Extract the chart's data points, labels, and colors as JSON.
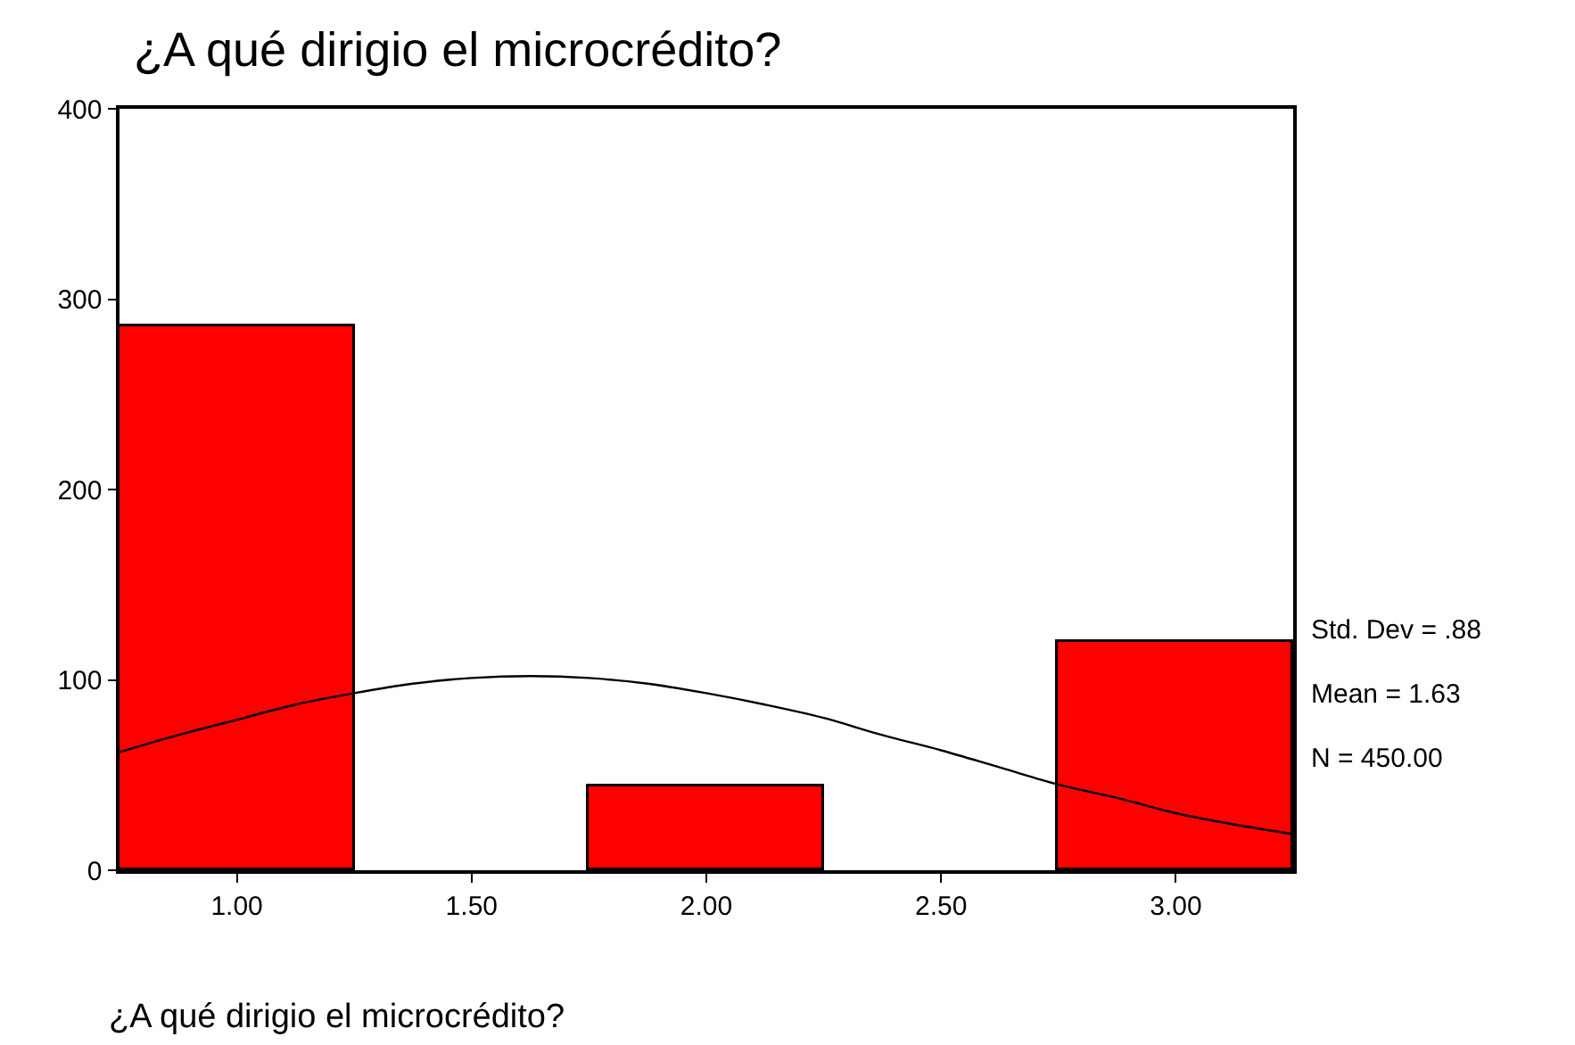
{
  "chart_data": {
    "type": "histogram",
    "title": "¿A qué dirigio el microcrédito?",
    "xlabel": "¿A qué dirigio el microcrédito?",
    "bins": [
      0.75,
      1.25,
      1.75,
      2.25,
      2.75,
      3.25
    ],
    "values": [
      286,
      0,
      44,
      0,
      120
    ],
    "color": "#ff0000",
    "series": [
      {
        "type": "line",
        "color": "#000000",
        "x": [
          0.75,
          0.875,
          1.0,
          1.125,
          1.25,
          1.375,
          1.5,
          1.625,
          1.75,
          1.875,
          2.0,
          2.125,
          2.25,
          2.375,
          2.5,
          2.625,
          2.75,
          2.875,
          3.0,
          3.125,
          3.25
        ],
        "values": [
          62,
          71,
          79,
          87,
          93,
          98,
          101,
          102,
          101,
          98,
          93,
          87,
          80,
          71,
          63,
          54,
          45,
          38,
          30,
          24,
          19
        ]
      }
    ],
    "xlim": [
      0.75,
      3.25
    ],
    "xticks": [
      {
        "value": 1,
        "label": "1.00"
      },
      {
        "value": 1.5,
        "label": "1.50"
      },
      {
        "value": 2,
        "label": "2.00"
      },
      {
        "value": 2.5,
        "label": "2.50"
      },
      {
        "value": 3,
        "label": "3.00"
      }
    ],
    "ylim": [
      0,
      400
    ],
    "yticks": [
      0,
      100,
      200,
      300,
      400
    ],
    "marker": "none",
    "line_style": "solid",
    "annotations": [
      "Std. Dev = .88",
      "Mean = 1.63",
      "N = 450.00"
    ]
  }
}
